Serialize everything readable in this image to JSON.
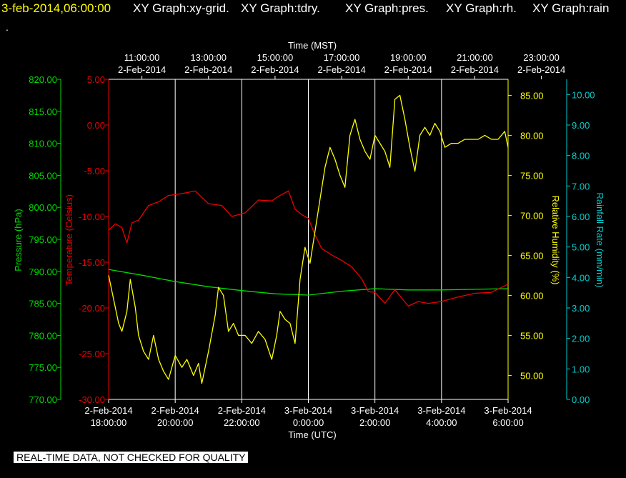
{
  "header": {
    "timestamp": "3-feb-2014,06:00:00",
    "items": [
      "XY Graph:xy-grid.",
      "XY Graph:tdry.",
      "XY Graph:pres.",
      "XY Graph:rh.",
      "XY Graph:rain"
    ],
    "dot": "."
  },
  "footer": {
    "notice": "REAL-TIME DATA, NOT CHECKED FOR QUALITY"
  },
  "colors": {
    "background": "#000000",
    "pressure": "#00dd00",
    "temperature": "#ee0000",
    "humidity": "#ffff00",
    "rain": "#00cccc",
    "grid": "#ffffff"
  },
  "chart_data": {
    "type": "line",
    "top_axis_title": "Time (MST)",
    "bottom_axis_title": "Time (UTC)",
    "top_ticks": [
      {
        "t": 0,
        "line1": "11:00:00",
        "line2": "2-Feb-2014"
      },
      {
        "t": 2,
        "line1": "13:00:00",
        "line2": "2-Feb-2014"
      },
      {
        "t": 4,
        "line1": "15:00:00",
        "line2": "2-Feb-2014"
      },
      {
        "t": 6,
        "line1": "17:00:00",
        "line2": "2-Feb-2014"
      },
      {
        "t": 8,
        "line1": "19:00:00",
        "line2": "2-Feb-2014"
      },
      {
        "t": 10,
        "line1": "21:00:00",
        "line2": "2-Feb-2014"
      },
      {
        "t": 12,
        "line1": "23:00:00",
        "line2": "2-Feb-2014"
      }
    ],
    "bottom_ticks": [
      {
        "t": -1,
        "line1": "2-Feb-2014",
        "line2": "18:00:00"
      },
      {
        "t": 1,
        "line1": "2-Feb-2014",
        "line2": "20:00:00"
      },
      {
        "t": 3,
        "line1": "2-Feb-2014",
        "line2": "22:00:00"
      },
      {
        "t": 5,
        "line1": "3-Feb-2014",
        "line2": "0:00:00"
      },
      {
        "t": 7,
        "line1": "3-Feb-2014",
        "line2": "2:00:00"
      },
      {
        "t": 9,
        "line1": "3-Feb-2014",
        "line2": "4:00:00"
      },
      {
        "t": 11,
        "line1": "3-Feb-2014",
        "line2": "6:00:00"
      }
    ],
    "x_range": [
      -1,
      11
    ],
    "grid_times": [
      1,
      3,
      5,
      7,
      9
    ],
    "axes": {
      "pressure": {
        "label": "Pressure (hPa)",
        "range": [
          770,
          820
        ],
        "ticks": [
          "770.00",
          "775.00",
          "780.00",
          "785.00",
          "790.00",
          "795.00",
          "800.00",
          "805.00",
          "810.00",
          "815.00",
          "820.00"
        ]
      },
      "temperature": {
        "label": "Temperature (Celsius)",
        "range": [
          -30,
          5
        ],
        "ticks": [
          "-30.00",
          "-25.00",
          "-20.00",
          "-15.00",
          "-10.00",
          "-5.00",
          "0.00",
          "5.00"
        ]
      },
      "humidity": {
        "label": "Relative Humidity (%)",
        "range": [
          47,
          87
        ],
        "ticks": [
          "50.00",
          "55.00",
          "60.00",
          "65.00",
          "70.00",
          "75.00",
          "80.00",
          "85.00"
        ]
      },
      "rain": {
        "label": "Rainfall Rate (mm/min)",
        "range": [
          0,
          10.5
        ],
        "ticks": [
          "0.00",
          "1.00",
          "2.00",
          "3.00",
          "4.00",
          "5.00",
          "6.00",
          "7.00",
          "8.00",
          "9.00",
          "10.00"
        ]
      }
    },
    "series": [
      {
        "name": "Pressure",
        "axis": "pressure",
        "x": [
          -1,
          0,
          1,
          2,
          3,
          4,
          5,
          6,
          7,
          8,
          9,
          10,
          11
        ],
        "y": [
          790.3,
          789.4,
          788.4,
          787.6,
          787.0,
          786.5,
          786.3,
          786.9,
          787.3,
          787.1,
          787.1,
          787.2,
          787.3
        ]
      },
      {
        "name": "Temperature",
        "axis": "temperature",
        "x": [
          -1,
          -0.8,
          -0.6,
          -0.45,
          -0.3,
          -0.1,
          0.2,
          0.5,
          0.8,
          1.2,
          1.6,
          2.0,
          2.4,
          2.7,
          3.1,
          3.5,
          3.9,
          4.1,
          4.4,
          4.6,
          4.8,
          5.0,
          5.2,
          5.4,
          5.7,
          6.0,
          6.3,
          6.6,
          6.8,
          7.0,
          7.3,
          7.6,
          8.0,
          8.3,
          8.6,
          9.0,
          9.5,
          10.0,
          10.5,
          11.0
        ],
        "y": [
          -11.5,
          -10.8,
          -11.2,
          -12.9,
          -10.7,
          -10.4,
          -8.8,
          -8.4,
          -7.7,
          -7.5,
          -7.2,
          -8.6,
          -8.8,
          -10.0,
          -9.6,
          -8.2,
          -8.3,
          -7.8,
          -7.2,
          -9.2,
          -9.8,
          -10.2,
          -12.0,
          -13.5,
          -14.2,
          -14.8,
          -15.5,
          -16.8,
          -18.2,
          -18.3,
          -19.5,
          -18.0,
          -19.8,
          -19.3,
          -19.5,
          -19.3,
          -18.8,
          -18.4,
          -18.3,
          -17.4
        ]
      },
      {
        "name": "Relative Humidity",
        "axis": "humidity",
        "x": [
          -1,
          -0.85,
          -0.7,
          -0.6,
          -0.45,
          -0.35,
          -0.2,
          -0.1,
          0.05,
          0.2,
          0.35,
          0.5,
          0.65,
          0.8,
          1.0,
          1.2,
          1.35,
          1.55,
          1.7,
          1.8,
          2.0,
          2.2,
          2.3,
          2.45,
          2.6,
          2.75,
          2.9,
          3.1,
          3.3,
          3.5,
          3.7,
          3.9,
          4.05,
          4.15,
          4.3,
          4.45,
          4.6,
          4.75,
          4.9,
          5.05,
          5.2,
          5.35,
          5.5,
          5.65,
          5.8,
          5.95,
          6.1,
          6.25,
          6.4,
          6.55,
          6.7,
          6.85,
          7.0,
          7.15,
          7.3,
          7.45,
          7.6,
          7.75,
          7.9,
          8.05,
          8.2,
          8.35,
          8.5,
          8.65,
          8.8,
          8.95,
          9.1,
          9.3,
          9.5,
          9.7,
          9.9,
          10.1,
          10.3,
          10.5,
          10.7,
          10.9,
          11.0
        ],
        "y": [
          62.5,
          59.5,
          56.5,
          55.5,
          58.0,
          62.0,
          58.5,
          55.0,
          53.0,
          52.0,
          55.0,
          52.0,
          50.5,
          49.5,
          52.5,
          51.0,
          52.0,
          50.0,
          51.5,
          49.0,
          53.0,
          57.5,
          61.0,
          60.0,
          55.5,
          56.5,
          55.0,
          55.0,
          54.0,
          55.5,
          54.5,
          52.0,
          55.0,
          58.0,
          57.0,
          56.5,
          54.0,
          62.0,
          66.0,
          64.0,
          68.0,
          72.0,
          76.0,
          78.5,
          77.0,
          75.0,
          73.5,
          80.0,
          82.0,
          79.5,
          78.0,
          77.0,
          80.0,
          79.0,
          78.0,
          76.0,
          84.5,
          85.0,
          82.0,
          78.5,
          75.5,
          80.0,
          81.0,
          80.0,
          81.5,
          80.5,
          78.5,
          79.0,
          79.0,
          79.5,
          79.5,
          79.5,
          80.0,
          79.5,
          79.5,
          80.5,
          78.5
        ]
      }
    ]
  }
}
